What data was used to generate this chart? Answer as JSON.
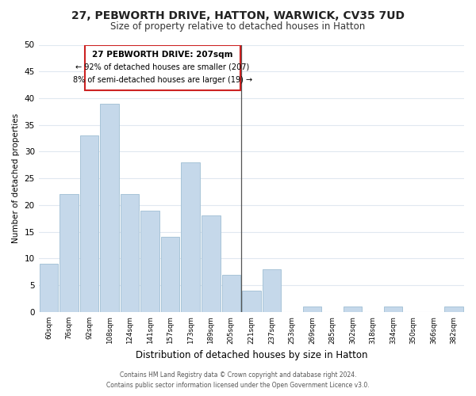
{
  "title": "27, PEBWORTH DRIVE, HATTON, WARWICK, CV35 7UD",
  "subtitle": "Size of property relative to detached houses in Hatton",
  "xlabel": "Distribution of detached houses by size in Hatton",
  "ylabel": "Number of detached properties",
  "categories": [
    "60sqm",
    "76sqm",
    "92sqm",
    "108sqm",
    "124sqm",
    "141sqm",
    "157sqm",
    "173sqm",
    "189sqm",
    "205sqm",
    "221sqm",
    "237sqm",
    "253sqm",
    "269sqm",
    "285sqm",
    "302sqm",
    "318sqm",
    "334sqm",
    "350sqm",
    "366sqm",
    "382sqm"
  ],
  "values": [
    9,
    22,
    33,
    39,
    22,
    19,
    14,
    28,
    18,
    7,
    4,
    8,
    0,
    1,
    0,
    1,
    0,
    1,
    0,
    0,
    1
  ],
  "bar_color": "#c5d8ea",
  "bar_edgecolor": "#a8c4d8",
  "ylim": [
    0,
    50
  ],
  "yticks": [
    0,
    5,
    10,
    15,
    20,
    25,
    30,
    35,
    40,
    45,
    50
  ],
  "property_line_index": 9.5,
  "annotation_title": "27 PEBWORTH DRIVE: 207sqm",
  "annotation_line1": "← 92% of detached houses are smaller (207)",
  "annotation_line2": "8% of semi-detached houses are larger (19) →",
  "footer_line1": "Contains HM Land Registry data © Crown copyright and database right 2024.",
  "footer_line2": "Contains public sector information licensed under the Open Government Licence v3.0.",
  "background_color": "#ffffff",
  "grid_color": "#e0e8f0"
}
